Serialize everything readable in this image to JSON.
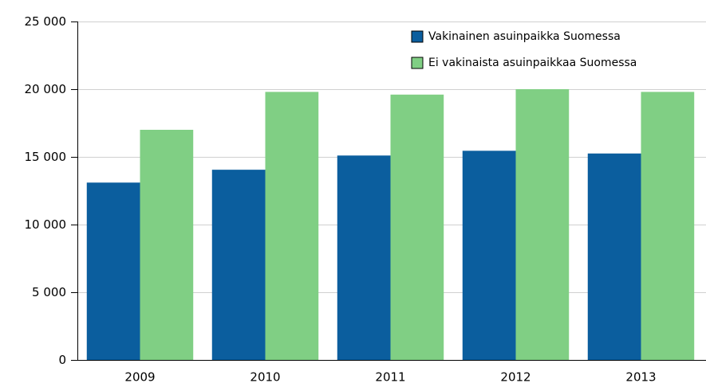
{
  "chart_data": {
    "type": "bar",
    "categories": [
      "2009",
      "2010",
      "2011",
      "2012",
      "2013"
    ],
    "series": [
      {
        "name": "Vakinainen asuinpaikka Suomessa",
        "color": "#0b5e9e",
        "values": [
          13100,
          14050,
          15100,
          15450,
          15250
        ]
      },
      {
        "name": "Ei vakinaista asuinpaikkaa Suomessa",
        "color": "#80cf84",
        "values": [
          17000,
          19800,
          19600,
          20000,
          19800
        ]
      }
    ],
    "ylim": [
      0,
      25000
    ],
    "yticks": [
      0,
      {
        "value": 5000,
        "label": "5 000"
      },
      {
        "value": 10000,
        "label": "10 000"
      },
      {
        "value": 15000,
        "label": "15 000"
      },
      {
        "value": 20000,
        "label": "20 000"
      },
      {
        "value": 25000,
        "label": "25 000"
      }
    ],
    "grid": true,
    "legend": "top-right"
  }
}
